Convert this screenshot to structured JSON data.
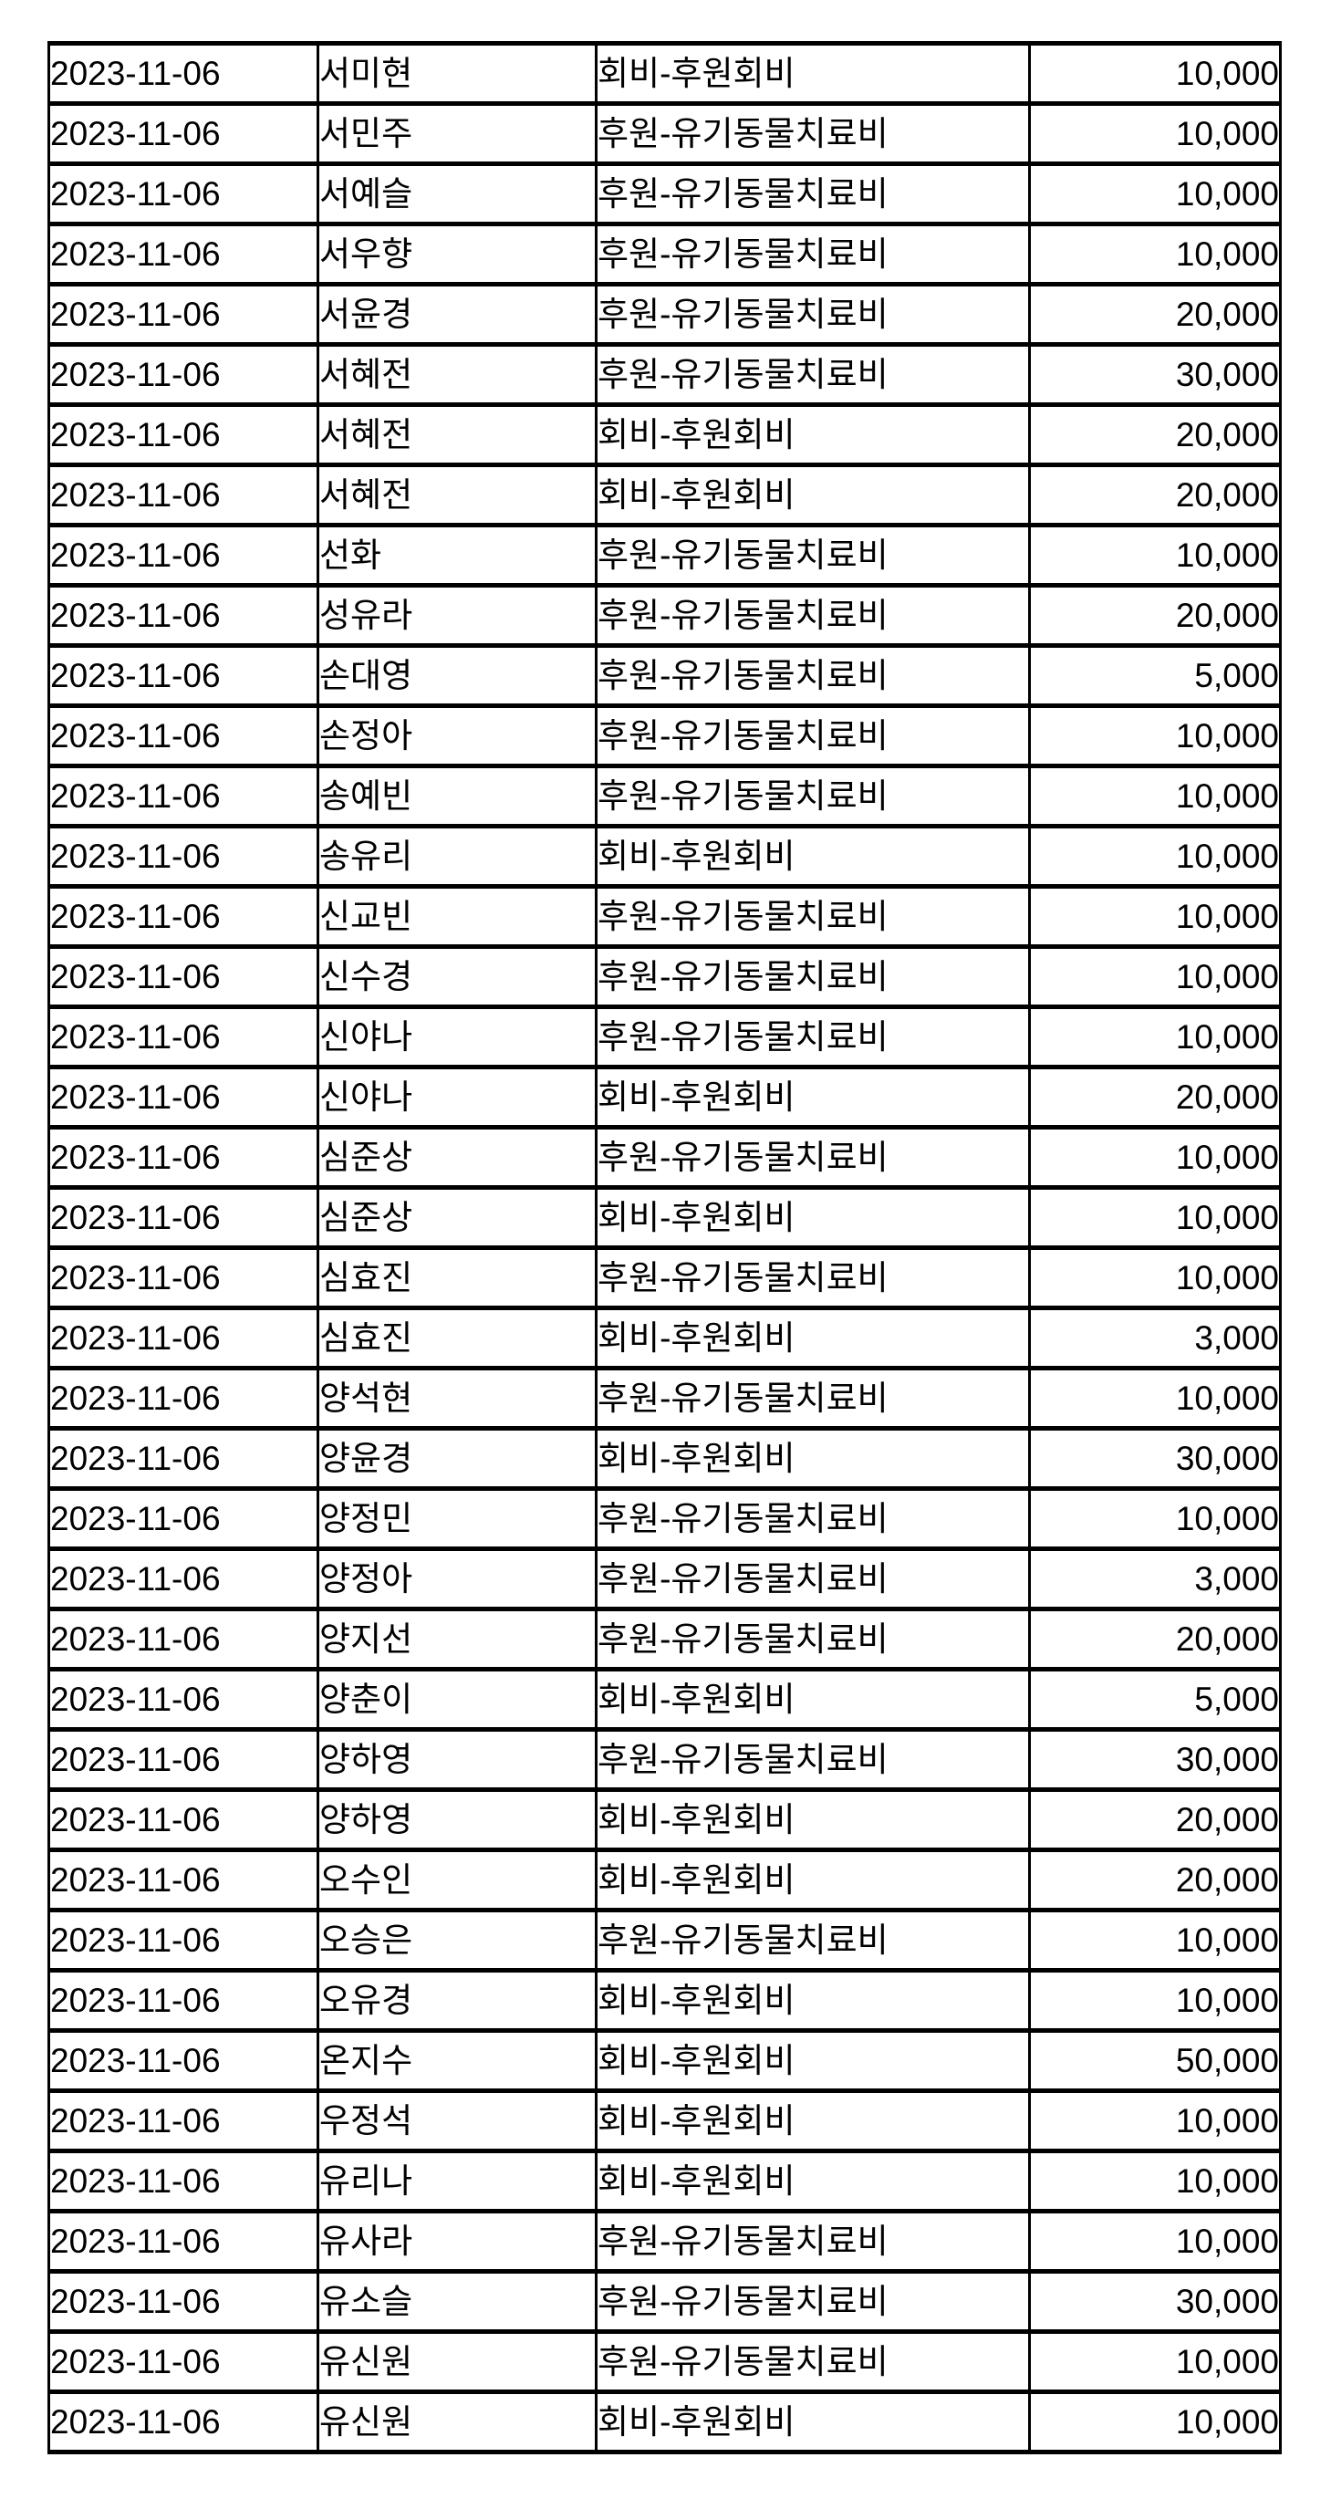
{
  "table": {
    "rows": [
      {
        "date": "2023-11-06",
        "name": "서미현",
        "category": "회비-후원회비",
        "amount": "10,000"
      },
      {
        "date": "2023-11-06",
        "name": "서민주",
        "category": "후원-유기동물치료비",
        "amount": "10,000"
      },
      {
        "date": "2023-11-06",
        "name": "서예슬",
        "category": "후원-유기동물치료비",
        "amount": "10,000"
      },
      {
        "date": "2023-11-06",
        "name": "서우향",
        "category": "후원-유기동물치료비",
        "amount": "10,000"
      },
      {
        "date": "2023-11-06",
        "name": "서윤경",
        "category": "후원-유기동물치료비",
        "amount": "20,000"
      },
      {
        "date": "2023-11-06",
        "name": "서혜전",
        "category": "후원-유기동물치료비",
        "amount": "30,000"
      },
      {
        "date": "2023-11-06",
        "name": "서혜전",
        "category": "회비-후원회비",
        "amount": "20,000"
      },
      {
        "date": "2023-11-06",
        "name": "서혜전",
        "category": "회비-후원회비",
        "amount": "20,000"
      },
      {
        "date": "2023-11-06",
        "name": "선화",
        "category": "후원-유기동물치료비",
        "amount": "10,000"
      },
      {
        "date": "2023-11-06",
        "name": "성유라",
        "category": "후원-유기동물치료비",
        "amount": "20,000"
      },
      {
        "date": "2023-11-06",
        "name": "손대영",
        "category": "후원-유기동물치료비",
        "amount": "5,000"
      },
      {
        "date": "2023-11-06",
        "name": "손정아",
        "category": "후원-유기동물치료비",
        "amount": "10,000"
      },
      {
        "date": "2023-11-06",
        "name": "송예빈",
        "category": "후원-유기동물치료비",
        "amount": "10,000"
      },
      {
        "date": "2023-11-06",
        "name": "송유리",
        "category": "회비-후원회비",
        "amount": "10,000"
      },
      {
        "date": "2023-11-06",
        "name": "신교빈",
        "category": "후원-유기동물치료비",
        "amount": "10,000"
      },
      {
        "date": "2023-11-06",
        "name": "신수경",
        "category": "후원-유기동물치료비",
        "amount": "10,000"
      },
      {
        "date": "2023-11-06",
        "name": "신야나",
        "category": "후원-유기동물치료비",
        "amount": "10,000"
      },
      {
        "date": "2023-11-06",
        "name": "신야나",
        "category": "회비-후원회비",
        "amount": "20,000"
      },
      {
        "date": "2023-11-06",
        "name": "심준상",
        "category": "후원-유기동물치료비",
        "amount": "10,000"
      },
      {
        "date": "2023-11-06",
        "name": "심준상",
        "category": "회비-후원회비",
        "amount": "10,000"
      },
      {
        "date": "2023-11-06",
        "name": "심효진",
        "category": "후원-유기동물치료비",
        "amount": "10,000"
      },
      {
        "date": "2023-11-06",
        "name": "심효진",
        "category": "회비-후원회비",
        "amount": "3,000"
      },
      {
        "date": "2023-11-06",
        "name": "양석현",
        "category": "후원-유기동물치료비",
        "amount": "10,000"
      },
      {
        "date": "2023-11-06",
        "name": "양윤경",
        "category": "회비-후원회비",
        "amount": "30,000"
      },
      {
        "date": "2023-11-06",
        "name": "양정민",
        "category": "후원-유기동물치료비",
        "amount": "10,000"
      },
      {
        "date": "2023-11-06",
        "name": "양정아",
        "category": "후원-유기동물치료비",
        "amount": "3,000"
      },
      {
        "date": "2023-11-06",
        "name": "양지선",
        "category": "후원-유기동물치료비",
        "amount": "20,000"
      },
      {
        "date": "2023-11-06",
        "name": "양춘이",
        "category": "회비-후원회비",
        "amount": "5,000"
      },
      {
        "date": "2023-11-06",
        "name": "양하영",
        "category": "후원-유기동물치료비",
        "amount": "30,000"
      },
      {
        "date": "2023-11-06",
        "name": "양하영",
        "category": "회비-후원회비",
        "amount": "20,000"
      },
      {
        "date": "2023-11-06",
        "name": "오수인",
        "category": "회비-후원회비",
        "amount": "20,000"
      },
      {
        "date": "2023-11-06",
        "name": "오승은",
        "category": "후원-유기동물치료비",
        "amount": "10,000"
      },
      {
        "date": "2023-11-06",
        "name": "오유경",
        "category": "회비-후원회비",
        "amount": "10,000"
      },
      {
        "date": "2023-11-06",
        "name": "온지수",
        "category": "회비-후원회비",
        "amount": "50,000"
      },
      {
        "date": "2023-11-06",
        "name": "우정석",
        "category": "회비-후원회비",
        "amount": "10,000"
      },
      {
        "date": "2023-11-06",
        "name": "유리나",
        "category": "회비-후원회비",
        "amount": "10,000"
      },
      {
        "date": "2023-11-06",
        "name": "유사라",
        "category": "후원-유기동물치료비",
        "amount": "10,000"
      },
      {
        "date": "2023-11-06",
        "name": "유소슬",
        "category": "후원-유기동물치료비",
        "amount": "30,000"
      },
      {
        "date": "2023-11-06",
        "name": "유신원",
        "category": "후원-유기동물치료비",
        "amount": "10,000"
      },
      {
        "date": "2023-11-06",
        "name": "유신원",
        "category": "회비-후원회비",
        "amount": "10,000"
      }
    ]
  }
}
